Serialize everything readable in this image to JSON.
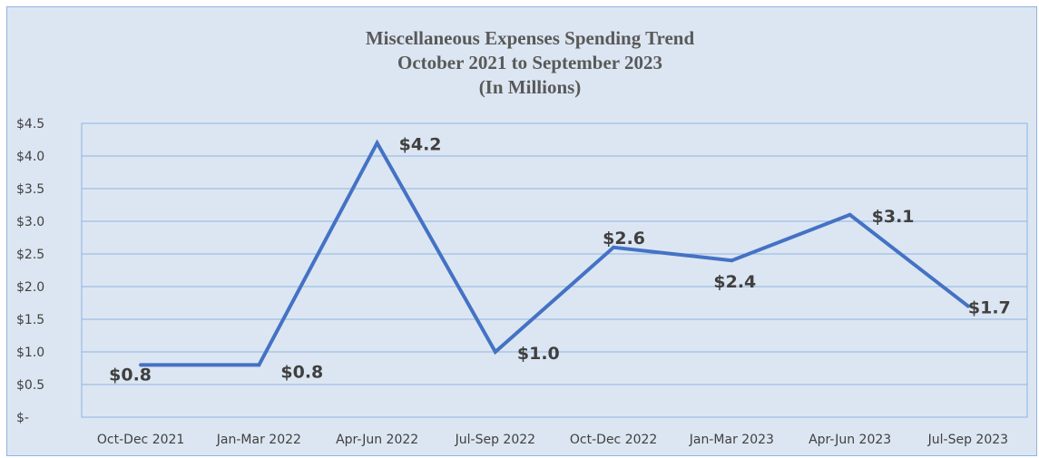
{
  "chart_data": {
    "type": "line",
    "title": "Miscellaneous Expenses Spending Trend",
    "subtitle": "October 2021 to September 2023",
    "subtitle2": "(In Millions)",
    "xlabel": "",
    "ylabel": "",
    "categories": [
      "Oct-Dec 2021",
      "Jan-Mar 2022",
      "Apr-Jun 2022",
      "Jul-Sep 2022",
      "Oct-Dec 2022",
      "Jan-Mar 2023",
      "Apr-Jun 2023",
      "Jul-Sep 2023"
    ],
    "series": [
      {
        "values": [
          0.8,
          0.8,
          4.2,
          1.0,
          2.6,
          2.4,
          3.1,
          1.7
        ],
        "labels": [
          "$0.8",
          "$0.8",
          "$4.2",
          "$1.0",
          "$2.6",
          "$2.4",
          "$3.1",
          "$1.7"
        ],
        "color": "#4472c4"
      }
    ],
    "ylim": [
      0,
      4.5
    ],
    "yticks": [
      0,
      0.5,
      1.0,
      1.5,
      2.0,
      2.5,
      3.0,
      3.5,
      4.0,
      4.5
    ],
    "ytick_labels": [
      "$-",
      "$0.5",
      "$1.0",
      "$1.5",
      "$2.0",
      "$2.5",
      "$3.0",
      "$3.5",
      "$4.0",
      "$4.5"
    ],
    "grid": true,
    "legend": "none"
  },
  "colors": {
    "background": "#dce6f2",
    "border": "#8eb4e3",
    "gridline": "#8eb4e3",
    "line": "#4472c4",
    "text": "#404040",
    "title": "#595959"
  }
}
